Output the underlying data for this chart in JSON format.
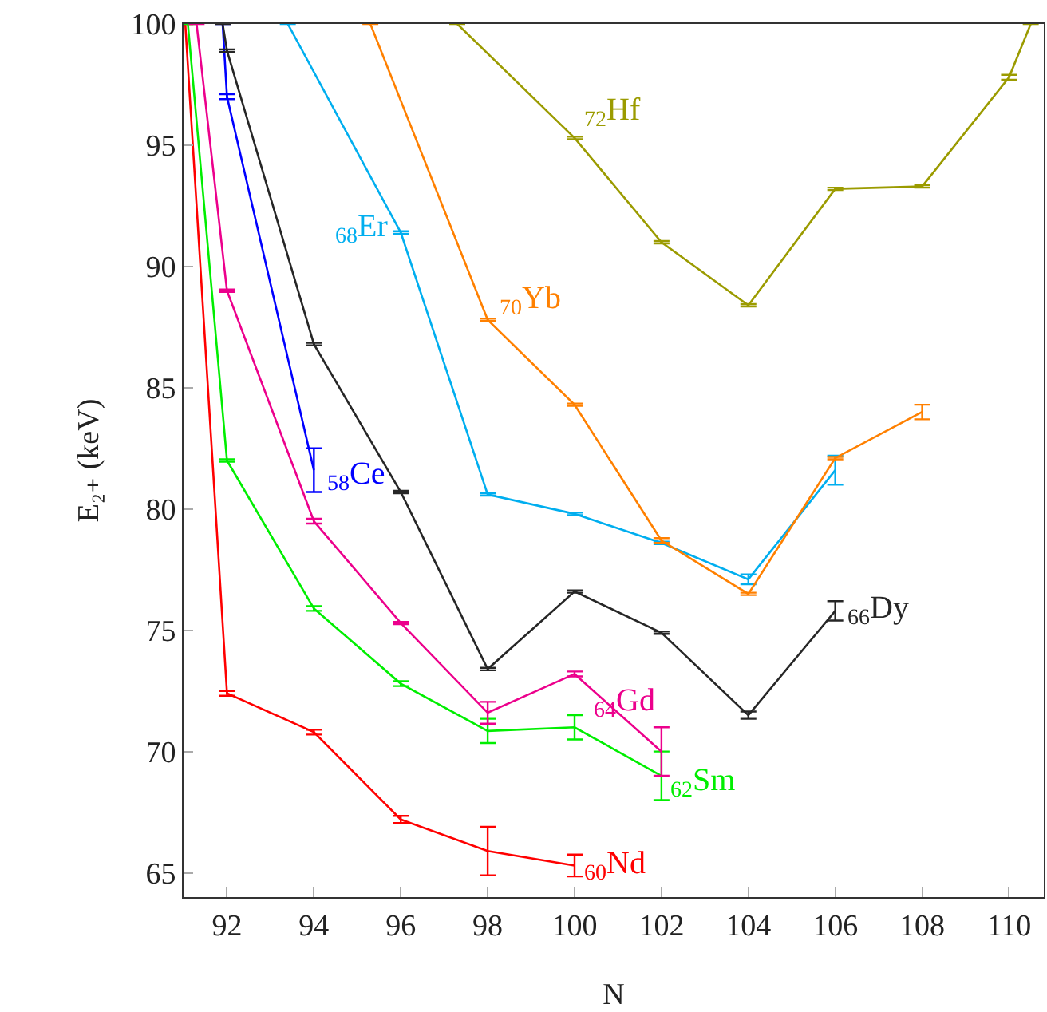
{
  "chart_data": {
    "type": "line",
    "xlabel": "N",
    "ylabel": "E₂₊ (keV)",
    "xlim": [
      91,
      110.8
    ],
    "xticks": [
      92,
      94,
      96,
      98,
      100,
      102,
      104,
      106,
      108,
      110
    ],
    "ylim": [
      64,
      100
    ],
    "yticks": [
      65,
      70,
      75,
      80,
      85,
      90,
      95,
      100
    ],
    "grid": false,
    "legend": false,
    "marker": "none",
    "line_style": "solid",
    "series": [
      {
        "name": "$_{60}$Nd",
        "color": "#ff0000",
        "x": [
          91.04,
          92,
          94,
          96,
          98,
          100
        ],
        "values": [
          100,
          72.4,
          70.8,
          67.2,
          65.9,
          65.3
        ],
        "errors": [
          null,
          0.1,
          0.1,
          0.15,
          1,
          0.45
        ]
      },
      {
        "name": "$_{62}$Sm",
        "color": "#00ee00",
        "x": [
          91.1,
          92,
          94,
          96,
          98,
          100,
          102
        ],
        "values": [
          100,
          82.0,
          75.9,
          72.8,
          70.85,
          71.0,
          69.0
        ],
        "errors": [
          null,
          0.05,
          0.1,
          0.1,
          0.5,
          0.5,
          1
        ]
      },
      {
        "name": "$_{64}$Gd",
        "color": "#ec008c",
        "x": [
          91.3,
          92,
          94,
          96,
          98,
          100,
          102
        ],
        "values": [
          100,
          89.0,
          79.5,
          75.3,
          71.6,
          73.2,
          70.0
        ],
        "errors": [
          null,
          0.05,
          0.1,
          0.05,
          0.45,
          0.1,
          1
        ]
      },
      {
        "name": "$_{58}$Ce",
        "color": "#0000ff",
        "x": [
          91.9,
          92,
          94
        ],
        "values": [
          100,
          97.0,
          81.6
        ],
        "errors": [
          null,
          0.1,
          0.9
        ]
      },
      {
        "name": "$_{66}$Dy",
        "color": "#262626",
        "x": [
          91.9,
          92,
          94,
          96,
          98,
          100,
          102,
          104,
          106
        ],
        "values": [
          100,
          98.9,
          86.8,
          80.7,
          73.4,
          76.6,
          74.9,
          71.5,
          75.8
        ],
        "errors": [
          null,
          0.05,
          0.05,
          0.05,
          0.05,
          0.05,
          0.05,
          0.15,
          0.4
        ]
      },
      {
        "name": "$_{68}$Er",
        "color": "#00aeef",
        "x": [
          93.4,
          96,
          98,
          100,
          102,
          104,
          106
        ],
        "values": [
          100,
          91.4,
          80.6,
          79.8,
          78.6,
          77.1,
          81.6
        ],
        "errors": [
          null,
          0.05,
          0.05,
          0.05,
          0.05,
          0.2,
          0.6
        ]
      },
      {
        "name": "$_{70}$Yb",
        "color": "#ff8000",
        "x": [
          95.3,
          98,
          100,
          102,
          104,
          106,
          108
        ],
        "values": [
          100,
          87.8,
          84.3,
          78.7,
          76.5,
          82.1,
          84.0
        ],
        "errors": [
          null,
          0.05,
          0.05,
          0.1,
          0.05,
          0.05,
          0.3
        ]
      },
      {
        "name": "$_{72}$Hf",
        "color": "#9b9b00",
        "x": [
          97.3,
          100,
          102,
          104,
          106,
          108,
          110,
          110.5
        ],
        "values": [
          100,
          95.3,
          91.0,
          88.4,
          93.2,
          93.3,
          97.8,
          100
        ],
        "errors": [
          null,
          0.05,
          0.05,
          0.05,
          0.05,
          0.05,
          0.1,
          null
        ]
      }
    ]
  }
}
